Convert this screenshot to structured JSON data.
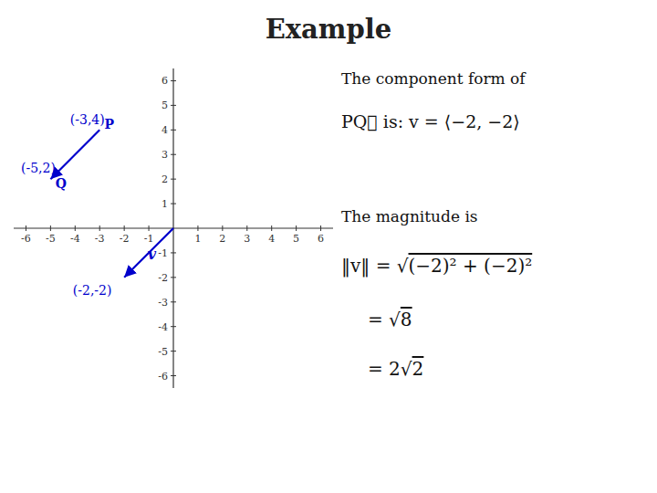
{
  "chart_data": {
    "type": "vector",
    "title": "Example",
    "color": "#0000cc",
    "xlim": [
      -6.5,
      6.5
    ],
    "ylim": [
      -6.5,
      6.5
    ],
    "xticks": [
      -6,
      -5,
      -4,
      -3,
      -2,
      -1,
      1,
      2,
      3,
      4,
      5,
      6
    ],
    "yticks": [
      -6,
      -5,
      -4,
      -3,
      -2,
      -1,
      1,
      2,
      3,
      4,
      5,
      6
    ],
    "vectors": [
      {
        "start": [
          -3,
          4
        ],
        "end": [
          -5,
          2
        ],
        "start_label": "P",
        "start_coords_label": "(-3,4)",
        "end_label": "Q",
        "end_coords_label": "(-5,2)"
      },
      {
        "start": [
          0,
          0
        ],
        "end": [
          -2,
          -2
        ],
        "label": "v",
        "end_coords_label": "(-2,-2)"
      }
    ],
    "annotations": [
      "The component form of",
      "PQ⃗  is:  v = ⟨−2, −2⟩",
      "The magnitude is",
      "‖v‖ = √(−2)² + (−2)²",
      "= √8",
      "= 2√2"
    ]
  }
}
